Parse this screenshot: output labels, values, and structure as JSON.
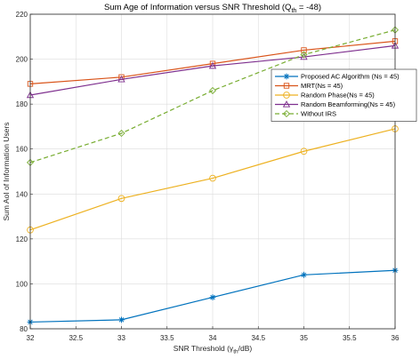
{
  "chart_data": {
    "type": "line",
    "title": {
      "main": "Sum Age of Information versus SNR Threshold (Q",
      "sub": "th",
      "end": " = -48)"
    },
    "xlabel": {
      "main": "SNR Threshold (γ",
      "sub": "th",
      "end": "/dB)"
    },
    "ylabel": "Sum AoI of Information Users",
    "x": [
      32,
      33,
      34,
      35,
      36
    ],
    "xlim": [
      32,
      36
    ],
    "ylim": [
      80,
      220
    ],
    "xticks": [
      "32",
      "32.5",
      "33",
      "33.5",
      "34",
      "34.5",
      "35",
      "35.5",
      "36"
    ],
    "yticks": [
      "80",
      "100",
      "120",
      "140",
      "160",
      "180",
      "200",
      "220"
    ],
    "grid": true,
    "legend_position": "right",
    "series": [
      {
        "name": "Proposed AC Algorithm (Ns = 45)",
        "values": [
          83,
          84,
          94,
          104,
          106
        ],
        "color": "#0072bd",
        "marker": "star",
        "dash": "solid"
      },
      {
        "name": "MRT(Ns = 45)",
        "values": [
          189,
          192,
          198,
          204,
          208
        ],
        "color": "#d95319",
        "marker": "square",
        "dash": "solid"
      },
      {
        "name": "Random Phase(Ns = 45)",
        "values": [
          124,
          138,
          147,
          159,
          169
        ],
        "color": "#edb120",
        "marker": "circle",
        "dash": "solid"
      },
      {
        "name": "Random Beamforming(Ns = 45)",
        "values": [
          184,
          191,
          197,
          201,
          206
        ],
        "color": "#7e2f8e",
        "marker": "triangle",
        "dash": "solid"
      },
      {
        "name": "Without IRS",
        "values": [
          154,
          167,
          186,
          202,
          213
        ],
        "color": "#77ac30",
        "marker": "diamond",
        "dash": "dashed"
      }
    ]
  }
}
